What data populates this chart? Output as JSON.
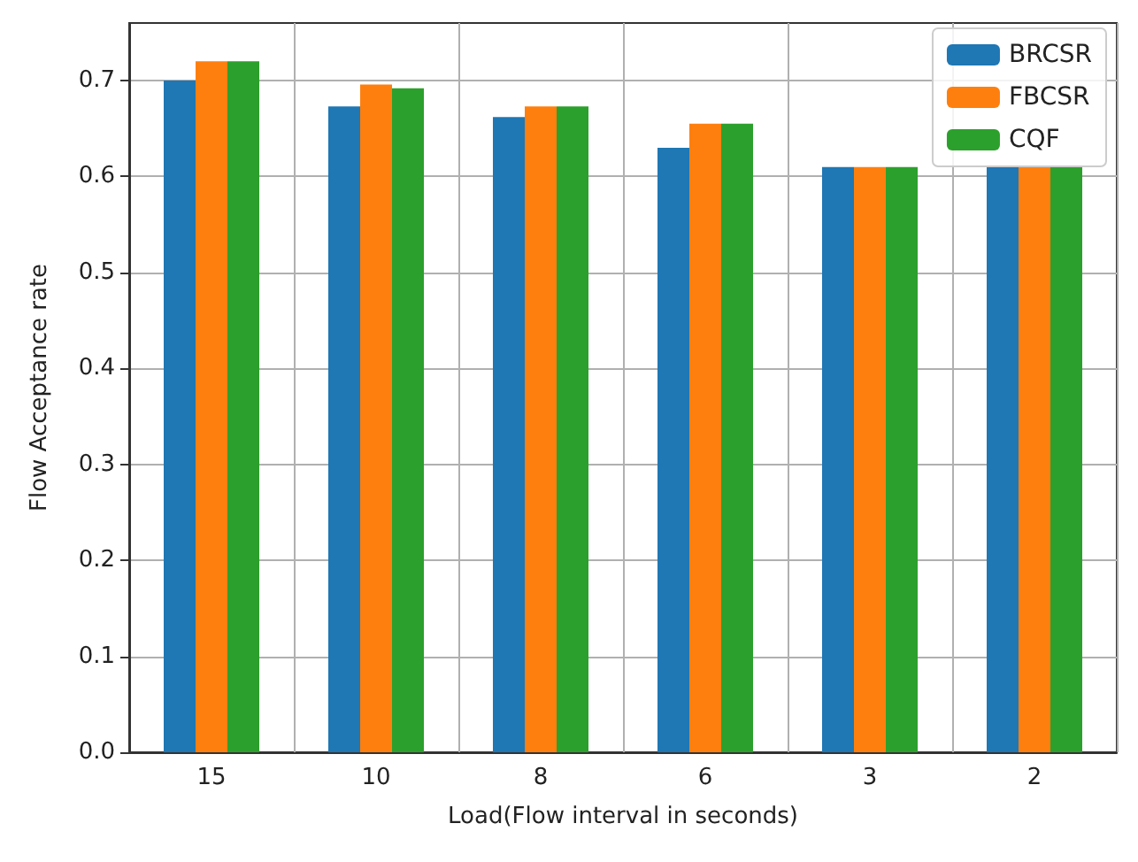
{
  "chart_data": {
    "type": "bar",
    "xlabel": "Load(Flow interval in seconds)",
    "ylabel": "Flow Acceptance rate",
    "categories": [
      "15",
      "10",
      "8",
      "6",
      "3",
      "2"
    ],
    "series": [
      {
        "name": "BRCSR",
        "color": "#1f77b4",
        "values": [
          0.7,
          0.673,
          0.662,
          0.63,
          0.61,
          0.61
        ]
      },
      {
        "name": "FBCSR",
        "color": "#ff7f0e",
        "values": [
          0.72,
          0.696,
          0.673,
          0.655,
          0.61,
          0.61
        ]
      },
      {
        "name": "CQF",
        "color": "#2ca02c",
        "values": [
          0.72,
          0.692,
          0.673,
          0.655,
          0.61,
          0.61
        ]
      }
    ],
    "ylim": [
      0,
      0.76
    ],
    "yticks": [
      {
        "value": 0,
        "label": "0.0"
      },
      0.1,
      0.2,
      0.3,
      0.4,
      0.5,
      0.6,
      0.7
    ],
    "grid": true,
    "legend": "top right"
  }
}
